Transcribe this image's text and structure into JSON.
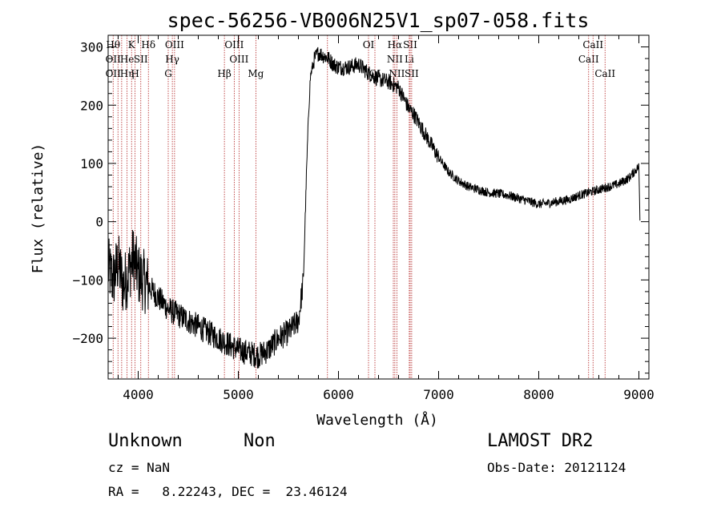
{
  "chart_data": {
    "type": "line",
    "title": "spec-56256-VB006N25V1_sp07-058.fits",
    "xlabel": "Wavelength (Å)",
    "ylabel": "Flux (relative)",
    "xlim": [
      3700,
      9100
    ],
    "ylim": [
      -270,
      320
    ],
    "xticks": [
      4000,
      5000,
      6000,
      7000,
      8000,
      9000
    ],
    "yticks": [
      -200,
      -100,
      0,
      100,
      200,
      300
    ],
    "grid": false,
    "series": [
      {
        "x": [
          3700,
          3750,
          3800,
          3850,
          3900,
          3950,
          4000,
          4100,
          4200,
          4300,
          4400,
          4500,
          4600,
          4700,
          4800,
          4900,
          5000,
          5100,
          5200,
          5300,
          5400,
          5500,
          5600,
          5650,
          5680,
          5700,
          5720,
          5760,
          5800,
          5850,
          5900,
          5950,
          6000,
          6100,
          6200,
          6300,
          6400,
          6500,
          6600,
          6700,
          6750,
          6800,
          6900,
          7000,
          7100,
          7200,
          7300,
          7400,
          7500,
          7600,
          7700,
          7800,
          7900,
          8000,
          8100,
          8200,
          8300,
          8400,
          8500,
          8600,
          8700,
          8800,
          8900,
          9000,
          9010
        ],
        "y": [
          -80,
          -100,
          -70,
          -110,
          -90,
          -60,
          -90,
          -110,
          -130,
          -150,
          -160,
          -170,
          -180,
          -190,
          -200,
          -210,
          -220,
          -225,
          -230,
          -220,
          -200,
          -190,
          -170,
          -100,
          80,
          180,
          250,
          280,
          290,
          285,
          280,
          270,
          265,
          265,
          270,
          255,
          245,
          240,
          230,
          195,
          185,
          170,
          140,
          110,
          85,
          70,
          60,
          55,
          50,
          48,
          45,
          40,
          35,
          30,
          32,
          35,
          38,
          45,
          50,
          55,
          60,
          65,
          75,
          95,
          5
        ]
      }
    ],
    "lines": [
      {
        "x": 3750,
        "labels": [
          "Hθ",
          "OII",
          "OII"
        ]
      },
      {
        "x": 3798,
        "labels": [
          "",
          "",
          ""
        ]
      },
      {
        "x": 3835,
        "labels": [
          "",
          "",
          ""
        ]
      },
      {
        "x": 3889,
        "labels": [
          "",
          "He",
          "Hη"
        ]
      },
      {
        "x": 3934,
        "labels": [
          "K",
          "",
          ""
        ]
      },
      {
        "x": 3969,
        "labels": [
          "",
          "",
          "H"
        ]
      },
      {
        "x": 4026,
        "labels": [
          "",
          "SII",
          ""
        ]
      },
      {
        "x": 4102,
        "labels": [
          "Hδ",
          "",
          ""
        ]
      },
      {
        "x": 4300,
        "labels": [
          "",
          "",
          "G"
        ]
      },
      {
        "x": 4341,
        "labels": [
          "",
          "Hγ",
          ""
        ]
      },
      {
        "x": 4363,
        "labels": [
          "OIII",
          "",
          ""
        ]
      },
      {
        "x": 4861,
        "labels": [
          "",
          "",
          "Hβ"
        ]
      },
      {
        "x": 4959,
        "labels": [
          "OIII",
          "",
          ""
        ]
      },
      {
        "x": 5007,
        "labels": [
          "",
          "OIII",
          ""
        ]
      },
      {
        "x": 5175,
        "labels": [
          "",
          "",
          "Mg"
        ]
      },
      {
        "x": 5890,
        "labels": [
          "",
          "",
          ""
        ]
      },
      {
        "x": 6300,
        "labels": [
          "OI",
          "",
          ""
        ]
      },
      {
        "x": 6364,
        "labels": [
          "",
          "",
          "OI"
        ]
      },
      {
        "x": 6548,
        "labels": [
          "",
          "",
          ""
        ]
      },
      {
        "x": 6563,
        "labels": [
          "Hα",
          "NII",
          ""
        ]
      },
      {
        "x": 6583,
        "labels": [
          "",
          "",
          "NII"
        ]
      },
      {
        "x": 6707,
        "labels": [
          "",
          "Li",
          ""
        ]
      },
      {
        "x": 6716,
        "labels": [
          "SII",
          "",
          ""
        ]
      },
      {
        "x": 6731,
        "labels": [
          "",
          "",
          "SII"
        ]
      },
      {
        "x": 8498,
        "labels": [
          "",
          "CaII",
          ""
        ]
      },
      {
        "x": 8542,
        "labels": [
          "CaII",
          "",
          ""
        ]
      },
      {
        "x": 8662,
        "labels": [
          "",
          "",
          "CaII"
        ]
      }
    ]
  },
  "info": {
    "object_class": "Unknown",
    "subclass": "Non",
    "survey": "LAMOST DR2",
    "cz": "cz = NaN",
    "obs_date": "Obs-Date: 20121124",
    "coords": "RA =   8.22243, DEC =  23.46124"
  }
}
